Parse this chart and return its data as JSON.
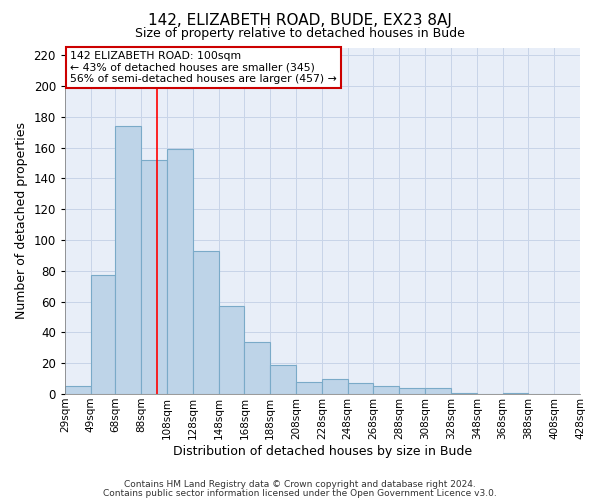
{
  "title": "142, ELIZABETH ROAD, BUDE, EX23 8AJ",
  "subtitle": "Size of property relative to detached houses in Bude",
  "xlabel": "Distribution of detached houses by size in Bude",
  "ylabel": "Number of detached properties",
  "bar_values": [
    5,
    77,
    174,
    152,
    159,
    93,
    57,
    34,
    19,
    8,
    10,
    7,
    5,
    4,
    4,
    1,
    0,
    1,
    0,
    0
  ],
  "bin_edges": [
    29,
    49,
    68,
    88,
    108,
    128,
    148,
    168,
    188,
    208,
    228,
    248,
    268,
    288,
    308,
    328,
    348,
    368,
    388,
    408,
    428
  ],
  "bin_labels": [
    "29sqm",
    "49sqm",
    "68sqm",
    "88sqm",
    "108sqm",
    "128sqm",
    "148sqm",
    "168sqm",
    "188sqm",
    "208sqm",
    "228sqm",
    "248sqm",
    "268sqm",
    "288sqm",
    "308sqm",
    "328sqm",
    "348sqm",
    "368sqm",
    "388sqm",
    "408sqm",
    "428sqm"
  ],
  "bar_color": "#bed4e8",
  "bar_edge_color": "#7aaac8",
  "plot_bg_color": "#e8eef8",
  "fig_bg_color": "#ffffff",
  "ylim": [
    0,
    225
  ],
  "yticks": [
    0,
    20,
    40,
    60,
    80,
    100,
    120,
    140,
    160,
    180,
    200,
    220
  ],
  "reference_line_x": 100,
  "annotation_title": "142 ELIZABETH ROAD: 100sqm",
  "annotation_line1": "← 43% of detached houses are smaller (345)",
  "annotation_line2": "56% of semi-detached houses are larger (457) →",
  "annotation_box_facecolor": "#ffffff",
  "annotation_box_edgecolor": "#cc0000",
  "footer_line1": "Contains HM Land Registry data © Crown copyright and database right 2024.",
  "footer_line2": "Contains public sector information licensed under the Open Government Licence v3.0.",
  "grid_color": "#c8d4e8"
}
